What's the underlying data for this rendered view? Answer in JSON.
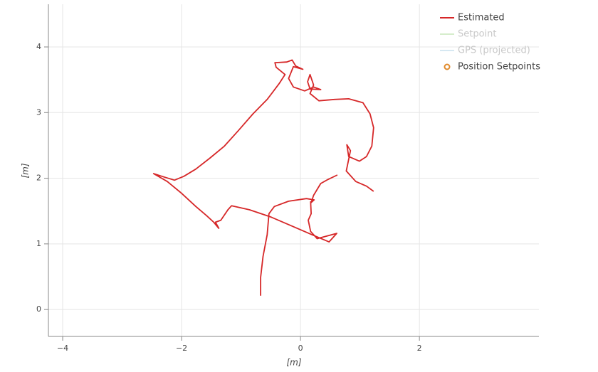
{
  "chart_data": {
    "type": "line",
    "xlabel": "[m]",
    "ylabel": "[m]",
    "xlim": [
      -4.24,
      4.01
    ],
    "ylim": [
      -0.41,
      4.65
    ],
    "xticks": [
      {
        "value": -4,
        "label": "−4"
      },
      {
        "value": -2,
        "label": "−2"
      },
      0,
      2
    ],
    "yticks": [
      0,
      1,
      2,
      3,
      4
    ],
    "grid": true,
    "series": [
      {
        "name": "Estimated",
        "color": "#d62728",
        "visible": true,
        "x": [
          -0.67,
          -0.67,
          -0.63,
          -0.56,
          -0.53,
          -0.44,
          -0.2,
          0.1,
          0.23,
          0.18,
          0.22,
          0.34,
          0.46,
          0.62,
          null,
          -1.37,
          -1.46,
          -1.58,
          -1.76,
          -2.0,
          -2.24,
          -2.47,
          -2.3,
          -2.12,
          -1.96,
          -1.76,
          -1.52,
          -1.28,
          -1.04,
          -0.8,
          -0.56,
          -0.36,
          -0.26,
          -0.41,
          -0.43,
          -0.23,
          -0.14,
          -0.08,
          0.04,
          -0.12,
          -0.2,
          -0.12,
          0.07,
          0.22,
          0.34,
          0.16,
          0.12,
          0.16,
          0.22,
          0.16,
          0.31,
          0.57,
          0.81,
          1.05,
          1.17,
          1.23,
          1.2,
          1.11,
          0.99,
          0.81,
          0.78,
          0.84,
          0.77,
          0.93,
          1.11,
          1.23,
          null,
          0.17,
          0.18,
          0.13,
          0.17,
          0.28,
          0.61,
          0.48,
          0.22,
          -0.14,
          -0.5,
          -0.86,
          -1.16,
          -1.22,
          -1.34,
          -1.43,
          -1.37
        ],
        "y": [
          0.21,
          0.49,
          0.81,
          1.14,
          1.46,
          1.57,
          1.65,
          1.69,
          1.67,
          1.63,
          1.74,
          1.92,
          1.98,
          2.05,
          null,
          1.23,
          1.33,
          1.43,
          1.57,
          1.77,
          1.95,
          2.07,
          2.02,
          1.97,
          2.03,
          2.14,
          2.31,
          2.49,
          2.73,
          2.98,
          3.2,
          3.44,
          3.58,
          3.69,
          3.76,
          3.77,
          3.8,
          3.71,
          3.66,
          3.7,
          3.52,
          3.39,
          3.33,
          3.39,
          3.35,
          3.36,
          3.47,
          3.58,
          3.42,
          3.29,
          3.18,
          3.2,
          3.21,
          3.15,
          2.98,
          2.77,
          2.49,
          2.33,
          2.26,
          2.33,
          2.51,
          2.42,
          2.11,
          1.95,
          1.88,
          1.8,
          null,
          1.65,
          1.46,
          1.36,
          1.19,
          1.08,
          1.16,
          1.03,
          1.13,
          1.27,
          1.41,
          1.52,
          1.58,
          1.52,
          1.36,
          1.33,
          1.23
        ]
      },
      {
        "name": "Setpoint",
        "color": "#a6d98f",
        "visible": false,
        "x": [],
        "y": []
      },
      {
        "name": "GPS (projected)",
        "color": "#a6cee3",
        "visible": false,
        "x": [],
        "y": []
      },
      {
        "name": "Position Setpoints",
        "color": "#e08a2c",
        "visible": true,
        "marker": "circle",
        "x": [],
        "y": []
      }
    ]
  }
}
